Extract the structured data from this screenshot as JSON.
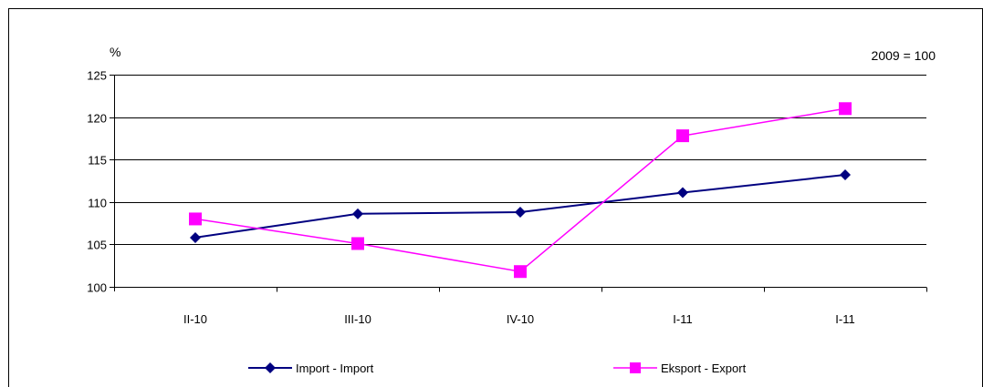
{
  "chart_data": {
    "type": "line",
    "ylabel": "%",
    "base_note": "2009 = 100",
    "categories": [
      "II-10",
      "III-10",
      "IV-10",
      "I-11",
      "I-11"
    ],
    "ylim": [
      100,
      125
    ],
    "yticks": [
      100,
      105,
      110,
      115,
      120,
      125
    ],
    "grid": true,
    "legend_position": "bottom",
    "series": [
      {
        "name": "Import - Import",
        "values": [
          105.8,
          108.6,
          108.8,
          111.1,
          113.2
        ],
        "color": "#000080",
        "marker": "diamond"
      },
      {
        "name": "Eksport - Export",
        "values": [
          108.0,
          105.1,
          101.8,
          117.8,
          121.0
        ],
        "color": "#ff00ff",
        "marker": "square"
      }
    ]
  }
}
